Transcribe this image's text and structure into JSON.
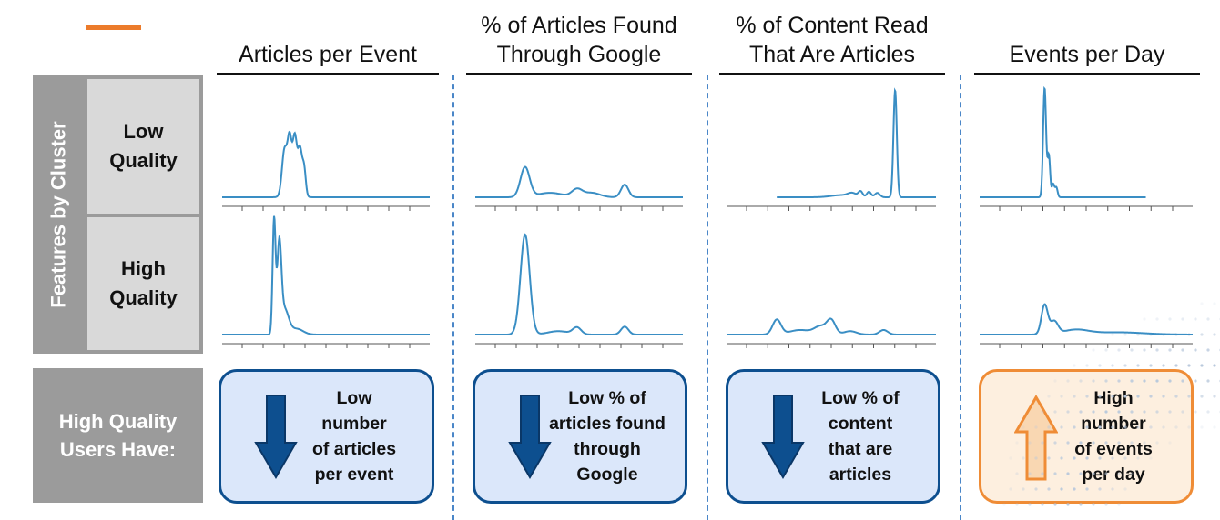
{
  "columns": [
    {
      "title": "Articles per Event"
    },
    {
      "title": "% of Articles Found\nThrough Google"
    },
    {
      "title": "% of Content Read\nThat Are Articles"
    },
    {
      "title": "Events per Day"
    }
  ],
  "side_label": "Features by Cluster",
  "rows": [
    {
      "label": "Low\nQuality"
    },
    {
      "label": "High\nQuality"
    }
  ],
  "summary": {
    "label": "High Quality\nUsers Have:",
    "cards": [
      {
        "text": "Low\nnumber\nof articles\nper event",
        "direction": "down",
        "color": "#0d4f8f",
        "arrow_icon": "down-arrow-icon"
      },
      {
        "text": "Low % of\narticles found\nthrough\nGoogle",
        "direction": "down",
        "color": "#0d4f8f",
        "arrow_icon": "down-arrow-icon"
      },
      {
        "text": "Low % of\ncontent\nthat are\narticles",
        "direction": "down",
        "color": "#0d4f8f",
        "arrow_icon": "down-arrow-icon"
      },
      {
        "text": "High\nnumber\nof events\nper day",
        "direction": "up",
        "color": "#ef8c36",
        "arrow_icon": "up-arrow-icon"
      }
    ]
  },
  "colors": {
    "accent": "#ec7b2b",
    "line": "#3a8ec4",
    "separator": "#4a86c8",
    "label_gray": "#9b9b9b",
    "row_gray": "#d9d9d9"
  },
  "chart_data": [
    {
      "type": "line",
      "panel": "articles-per-event-low",
      "x_range": [
        0,
        1
      ],
      "ylim": [
        0,
        1
      ],
      "ticks": 9,
      "peaks": [
        [
          0.34,
          0.09,
          0.03
        ],
        [
          0.3,
          0.6,
          0.012
        ],
        [
          0.325,
          0.7,
          0.01
        ],
        [
          0.35,
          0.72,
          0.01
        ],
        [
          0.375,
          0.6,
          0.01
        ],
        [
          0.395,
          0.35,
          0.008
        ]
      ],
      "support": [
        0.0,
        1.0
      ]
    },
    {
      "type": "line",
      "panel": "articles-per-event-high",
      "x_range": [
        0,
        1
      ],
      "ylim": [
        0,
        1
      ],
      "ticks": 9,
      "peaks": [
        [
          0.25,
          1.0,
          0.007
        ],
        [
          0.275,
          0.75,
          0.01
        ],
        [
          0.3,
          0.22,
          0.02
        ],
        [
          0.36,
          0.05,
          0.03
        ]
      ],
      "support": [
        0.0,
        1.0
      ]
    },
    {
      "type": "line",
      "panel": "google-low",
      "x_range": [
        0,
        1
      ],
      "ylim": [
        0,
        1
      ],
      "ticks": 9,
      "peaks": [
        [
          0.24,
          0.4,
          0.022
        ],
        [
          0.36,
          0.06,
          0.06
        ],
        [
          0.49,
          0.1,
          0.025
        ],
        [
          0.56,
          0.06,
          0.04
        ],
        [
          0.72,
          0.17,
          0.018
        ]
      ],
      "support": [
        0.0,
        1.0
      ]
    },
    {
      "type": "line",
      "panel": "google-high",
      "x_range": [
        0,
        1
      ],
      "ylim": [
        0,
        1
      ],
      "ticks": 9,
      "peaks": [
        [
          0.24,
          0.88,
          0.022
        ],
        [
          0.4,
          0.03,
          0.05
        ],
        [
          0.49,
          0.06,
          0.02
        ],
        [
          0.72,
          0.07,
          0.018
        ]
      ],
      "support": [
        0.0,
        1.0
      ]
    },
    {
      "type": "line",
      "panel": "content-low",
      "x_range": [
        0,
        1
      ],
      "ylim": [
        0,
        1
      ],
      "ticks": 9,
      "peaks": [
        [
          0.55,
          0.02,
          0.05
        ],
        [
          0.6,
          0.03,
          0.02
        ],
        [
          0.64,
          0.05,
          0.01
        ],
        [
          0.68,
          0.05,
          0.01
        ],
        [
          0.72,
          0.04,
          0.012
        ],
        [
          0.805,
          0.98,
          0.008
        ]
      ],
      "support": [
        0.24,
        1.0
      ]
    },
    {
      "type": "line",
      "panel": "content-high",
      "x_range": [
        0,
        1
      ],
      "ylim": [
        0,
        1
      ],
      "ticks": 9,
      "peaks": [
        [
          0.24,
          0.13,
          0.02
        ],
        [
          0.35,
          0.04,
          0.05
        ],
        [
          0.45,
          0.07,
          0.03
        ],
        [
          0.5,
          0.12,
          0.02
        ],
        [
          0.59,
          0.03,
          0.03
        ],
        [
          0.75,
          0.04,
          0.02
        ]
      ],
      "support": [
        0.0,
        1.0
      ]
    },
    {
      "type": "line",
      "panel": "events-per-day-low",
      "x_range": [
        0,
        1
      ],
      "ylim": [
        0,
        1
      ],
      "ticks": 9,
      "peaks": [
        [
          0.305,
          1.0,
          0.007
        ],
        [
          0.325,
          0.38,
          0.006
        ],
        [
          0.345,
          0.12,
          0.006
        ],
        [
          0.36,
          0.09,
          0.006
        ]
      ],
      "support": [
        0.0,
        0.78
      ]
    },
    {
      "type": "line",
      "panel": "events-per-day-high",
      "x_range": [
        0,
        1
      ],
      "ylim": [
        0,
        1
      ],
      "ticks": 9,
      "peaks": [
        [
          0.305,
          0.26,
          0.015
        ],
        [
          0.35,
          0.11,
          0.018
        ],
        [
          0.45,
          0.04,
          0.06
        ],
        [
          0.65,
          0.02,
          0.12
        ]
      ],
      "support": [
        0.0,
        1.0
      ]
    }
  ]
}
